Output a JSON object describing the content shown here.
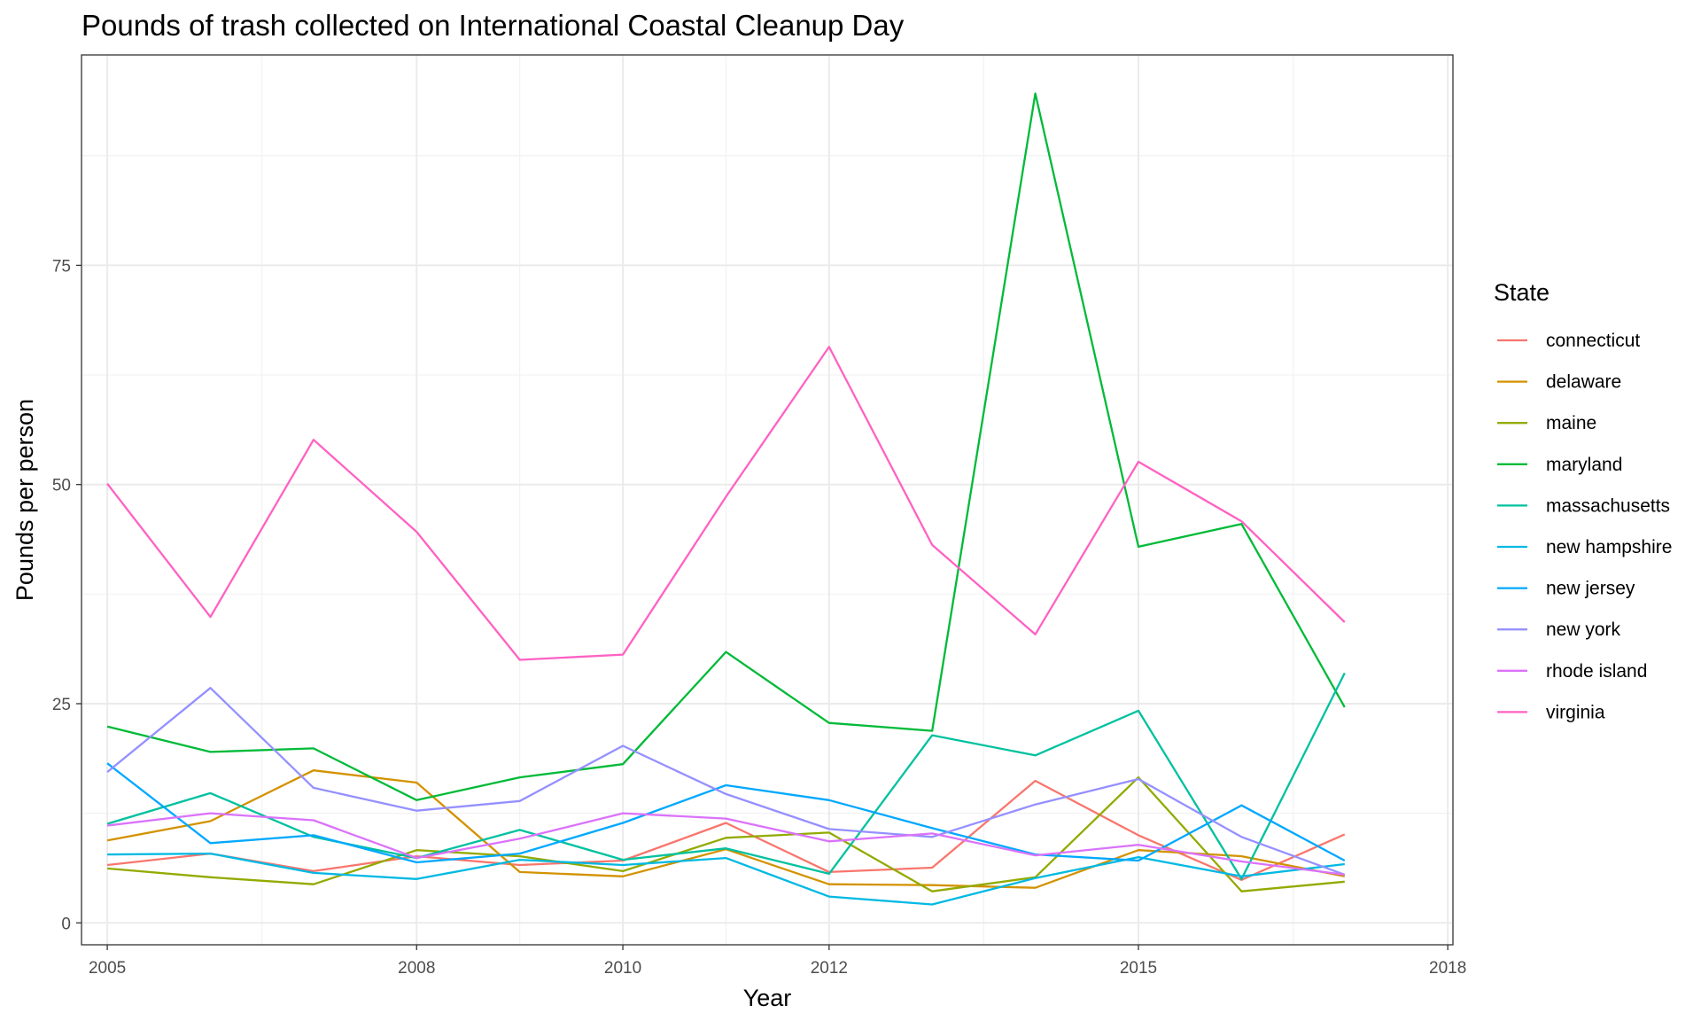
{
  "chart_data": {
    "type": "line",
    "title": "Pounds of trash collected on International Coastal Cleanup Day",
    "xlabel": "Year",
    "ylabel": "Pounds per person",
    "xlim": [
      2004.75,
      2018.05
    ],
    "ylim": [
      -2.5,
      99
    ],
    "x_ticks": [
      2005,
      2008,
      2010,
      2012,
      2015,
      2018
    ],
    "x_tick_labels": [
      "2005",
      "2008",
      "2010",
      "2012",
      "2015",
      "2018"
    ],
    "y_ticks": [
      0,
      25,
      50,
      75
    ],
    "y_tick_labels": [
      "0",
      "25",
      "50",
      "75"
    ],
    "grid": true,
    "legend": {
      "title": "State",
      "position": "right"
    },
    "x": [
      2005,
      2006,
      2007,
      2008,
      2009,
      2010,
      2011,
      2012,
      2013,
      2014,
      2015,
      2016,
      2017
    ],
    "series": [
      {
        "name": "connecticut",
        "color": "#F8766D",
        "values": [
          6.6,
          7.9,
          5.9,
          7.6,
          6.6,
          7.1,
          11.4,
          5.8,
          6.3,
          16.2,
          10.0,
          4.9,
          10.1
        ]
      },
      {
        "name": "delaware",
        "color": "#D39200",
        "values": [
          9.4,
          11.6,
          17.4,
          16.0,
          5.8,
          5.3,
          8.4,
          4.4,
          4.3,
          4.0,
          8.3,
          7.6,
          5.3
        ]
      },
      {
        "name": "maine",
        "color": "#93AA00",
        "values": [
          6.2,
          5.2,
          4.4,
          8.3,
          7.6,
          5.9,
          9.7,
          10.3,
          3.6,
          5.2,
          16.6,
          3.6,
          4.7
        ]
      },
      {
        "name": "maryland",
        "color": "#00BA38",
        "values": [
          22.4,
          19.5,
          19.9,
          14.0,
          16.6,
          18.1,
          30.9,
          22.8,
          21.9,
          94.6,
          42.9,
          45.5,
          24.6
        ]
      },
      {
        "name": "massachusetts",
        "color": "#00C19F",
        "values": [
          11.3,
          14.8,
          9.8,
          7.4,
          10.6,
          7.2,
          8.5,
          5.6,
          21.4,
          19.1,
          24.2,
          5.0,
          28.5
        ]
      },
      {
        "name": "new hampshire",
        "color": "#00B9E3",
        "values": [
          7.8,
          7.9,
          5.7,
          5.0,
          7.2,
          6.6,
          7.4,
          3.0,
          2.1,
          5.1,
          7.5,
          5.3,
          6.7
        ]
      },
      {
        "name": "new jersey",
        "color": "#00A8FF",
        "values": [
          18.2,
          9.1,
          10.0,
          6.9,
          7.9,
          11.4,
          15.7,
          14.0,
          10.8,
          7.8,
          7.1,
          13.4,
          7.1
        ]
      },
      {
        "name": "new york",
        "color": "#9590FF",
        "values": [
          17.2,
          26.8,
          15.4,
          12.8,
          13.9,
          20.2,
          14.7,
          10.7,
          9.8,
          13.5,
          16.4,
          9.8,
          5.5
        ]
      },
      {
        "name": "rhode island",
        "color": "#DB72FB",
        "values": [
          11.1,
          12.5,
          11.7,
          7.4,
          9.6,
          12.5,
          11.9,
          9.3,
          10.2,
          7.7,
          8.9,
          7.0,
          5.5
        ]
      },
      {
        "name": "virginia",
        "color": "#FF61C3",
        "values": [
          50.1,
          34.9,
          55.1,
          44.6,
          30.0,
          30.6,
          48.6,
          65.7,
          43.1,
          32.9,
          52.6,
          45.8,
          34.3
        ]
      }
    ]
  }
}
